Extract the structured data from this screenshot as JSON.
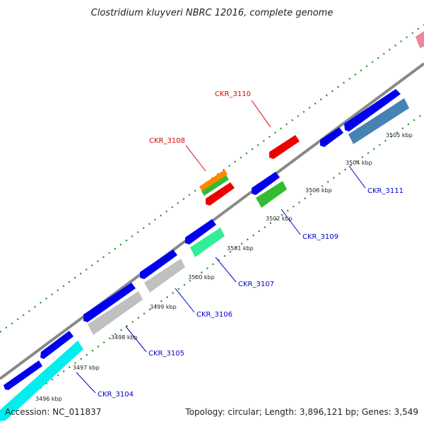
{
  "title": "Clostridium kluyveri NBRC 12016, complete genome",
  "footer": {
    "accession": "Accession: NC_011837",
    "summary": "Topology: circular; Length: 3,896,121 bp; Genes: 3,549"
  },
  "scale_labels": [
    "3496 kbp",
    "3497 kbp",
    "3498 kbp",
    "3499 kbp",
    "3500 kbp",
    "3501 kbp",
    "3502 kbp",
    "3503 kbp",
    "3504 kbp",
    "3505 kbp"
  ],
  "gene_labels": [
    "CKR_3104",
    "CKR_3105",
    "CKR_3106",
    "CKR_3107",
    "CKR_3108",
    "CKR_3109",
    "CKR_3110",
    "CKR_3111"
  ],
  "colors": {
    "backbone": "#888888",
    "dots": "#228822",
    "blue": "#0000ee",
    "cyan": "#00eeee",
    "silver": "#c0c0c0",
    "mint": "#33ee99",
    "green": "#33bb33",
    "orange": "#ff8800",
    "red": "#ee0000",
    "steel": "#4682b4",
    "pink": "#ee8899",
    "label_blue": "#0000cc",
    "label_red": "#dd0000"
  }
}
